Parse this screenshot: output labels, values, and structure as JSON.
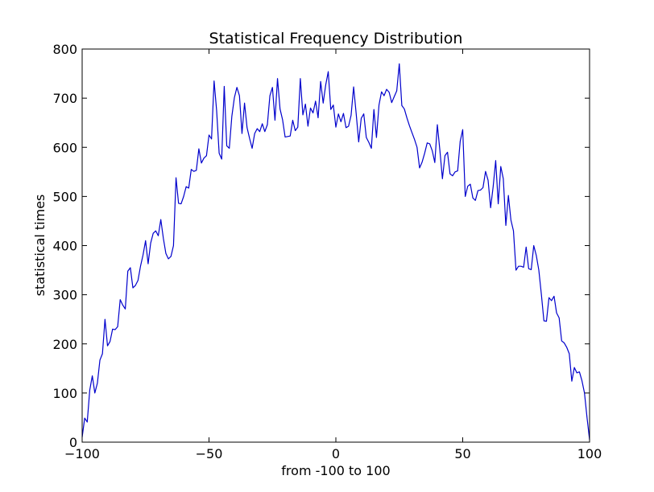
{
  "chart_data": {
    "type": "line",
    "title": "Statistical Frequency Distribution",
    "xlabel": "from -100 to 100",
    "ylabel": "statistical times",
    "xlim": [
      -100,
      100
    ],
    "ylim": [
      0,
      800
    ],
    "x_ticks": [
      -100,
      -50,
      0,
      50,
      100
    ],
    "y_ticks": [
      0,
      100,
      200,
      300,
      400,
      500,
      600,
      700,
      800
    ],
    "x_tick_labels": [
      "−100",
      "−50",
      "0",
      "50",
      "100"
    ],
    "y_tick_labels": [
      "0",
      "100",
      "200",
      "300",
      "400",
      "500",
      "600",
      "700",
      "800"
    ],
    "grid": false,
    "line_color": "#0000cc",
    "series": [
      {
        "x_start": -100,
        "x_step": 1,
        "values": [
          10,
          49,
          41,
          106,
          135,
          100,
          120,
          167,
          180,
          250,
          196,
          205,
          230,
          229,
          235,
          290,
          279,
          271,
          348,
          355,
          314,
          319,
          329,
          358,
          381,
          410,
          363,
          405,
          425,
          430,
          420,
          453,
          415,
          384,
          373,
          378,
          400,
          538,
          486,
          485,
          500,
          520,
          517,
          555,
          551,
          553,
          597,
          568,
          578,
          583,
          625,
          617,
          735,
          675,
          588,
          576,
          724,
          603,
          598,
          663,
          701,
          722,
          705,
          628,
          690,
          640,
          618,
          598,
          628,
          638,
          632,
          648,
          632,
          646,
          705,
          722,
          655,
          740,
          678,
          656,
          621,
          622,
          623,
          655,
          634,
          641,
          740,
          666,
          688,
          643,
          680,
          670,
          694,
          660,
          734,
          690,
          727,
          754,
          677,
          686,
          641,
          668,
          652,
          669,
          640,
          643,
          665,
          723,
          669,
          611,
          659,
          668,
          620,
          610,
          598,
          677,
          620,
          686,
          713,
          705,
          718,
          712,
          691,
          703,
          715,
          770,
          685,
          678,
          660,
          644,
          630,
          616,
          600,
          558,
          570,
          588,
          609,
          607,
          593,
          569,
          646,
          594,
          536,
          583,
          590,
          546,
          542,
          550,
          552,
          612,
          636,
          500,
          521,
          525,
          497,
          492,
          512,
          513,
          518,
          551,
          533,
          477,
          520,
          573,
          485,
          561,
          536,
          441,
          502,
          452,
          430,
          350,
          358,
          358,
          356,
          397,
          353,
          351,
          400,
          380,
          350,
          301,
          247,
          246,
          294,
          288,
          297,
          263,
          253,
          206,
          202,
          193,
          180,
          124,
          152,
          141,
          143,
          125,
          100,
          50,
          5
        ]
      }
    ]
  }
}
